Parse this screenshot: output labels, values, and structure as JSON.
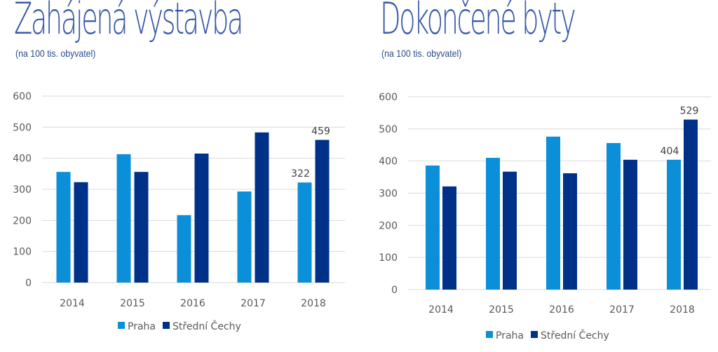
{
  "colors": {
    "praha": "#0b8fd8",
    "stredni": "#003189",
    "title": "#3a5aa8",
    "grid": "#d9d9d9"
  },
  "chart_data": [
    {
      "type": "bar",
      "title": "Zahájená výstavba",
      "subtitle": "(na 100 tis. obyvatel)",
      "categories": [
        "2014",
        "2015",
        "2016",
        "2017",
        "2018"
      ],
      "series": [
        {
          "name": "Praha",
          "values": [
            356,
            413,
            217,
            293,
            322
          ]
        },
        {
          "name": "Střední Čechy",
          "values": [
            323,
            356,
            415,
            483,
            459
          ]
        }
      ],
      "data_labels": [
        {
          "series": 0,
          "index": 4,
          "text": "322"
        },
        {
          "series": 1,
          "index": 4,
          "text": "459"
        }
      ],
      "yticks": [
        "0",
        "100",
        "200",
        "300",
        "400",
        "500",
        "600"
      ],
      "ylim": [
        0,
        600
      ],
      "grid": true,
      "legend": "bottom",
      "xlabel": "",
      "ylabel": ""
    },
    {
      "type": "bar",
      "title": "Dokončené byty",
      "subtitle": "(na 100 tis. obyvatel)",
      "categories": [
        "2014",
        "2015",
        "2016",
        "2017",
        "2018"
      ],
      "series": [
        {
          "name": "Praha",
          "values": [
            386,
            410,
            476,
            456,
            404
          ]
        },
        {
          "name": "Střední Čechy",
          "values": [
            321,
            367,
            362,
            404,
            529
          ]
        }
      ],
      "data_labels": [
        {
          "series": 0,
          "index": 4,
          "text": "404"
        },
        {
          "series": 1,
          "index": 4,
          "text": "529"
        }
      ],
      "yticks": [
        "0",
        "100",
        "200",
        "300",
        "400",
        "500",
        "600"
      ],
      "ylim": [
        0,
        600
      ],
      "grid": true,
      "legend": "bottom",
      "xlabel": "",
      "ylabel": ""
    }
  ]
}
